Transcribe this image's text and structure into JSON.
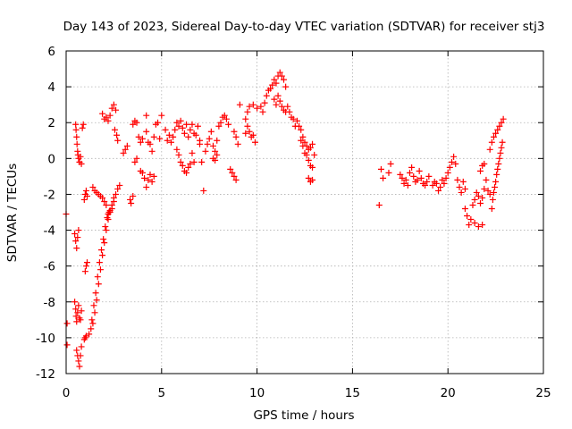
{
  "chart_data": {
    "type": "scatter",
    "title": "Day 143 of 2023, Sidereal Day-to-day VTEC variation (SDTVAR) for receiver stj3",
    "xlabel": "GPS time / hours",
    "ylabel": "SDTVAR / TECUs",
    "xlim": [
      0,
      25
    ],
    "ylim": [
      -12,
      6
    ],
    "xticks": [
      0,
      5,
      10,
      15,
      20,
      25
    ],
    "yticks": [
      -12,
      -10,
      -8,
      -6,
      -4,
      -2,
      0,
      2,
      4,
      6
    ],
    "grid": true,
    "marker": "+",
    "color": "#ff0000",
    "series": [
      {
        "name": "SDTVAR",
        "points": [
          [
            0.0,
            -3.1
          ],
          [
            0.05,
            -9.2
          ],
          [
            0.05,
            -10.4
          ],
          [
            0.5,
            1.9
          ],
          [
            0.52,
            1.6
          ],
          [
            0.55,
            1.2
          ],
          [
            0.57,
            0.8
          ],
          [
            0.6,
            0.4
          ],
          [
            0.62,
            0.2
          ],
          [
            0.65,
            0.0
          ],
          [
            0.7,
            -0.2
          ],
          [
            0.75,
            0.1
          ],
          [
            0.8,
            -0.3
          ],
          [
            0.85,
            1.7
          ],
          [
            0.9,
            1.9
          ],
          [
            0.45,
            -4.2
          ],
          [
            0.5,
            -4.6
          ],
          [
            0.55,
            -5.0
          ],
          [
            0.6,
            -4.4
          ],
          [
            0.65,
            -4.0
          ],
          [
            0.45,
            -8.0
          ],
          [
            0.5,
            -8.4
          ],
          [
            0.52,
            -8.8
          ],
          [
            0.55,
            -9.1
          ],
          [
            0.6,
            -8.6
          ],
          [
            0.65,
            -8.2
          ],
          [
            0.7,
            -8.9
          ],
          [
            0.75,
            -9.0
          ],
          [
            0.8,
            -8.5
          ],
          [
            0.55,
            -10.7
          ],
          [
            0.6,
            -11.0
          ],
          [
            0.65,
            -11.3
          ],
          [
            0.7,
            -11.6
          ],
          [
            0.75,
            -11.0
          ],
          [
            0.8,
            -10.5
          ],
          [
            0.95,
            -10.1
          ],
          [
            1.0,
            -10.0
          ],
          [
            1.05,
            -9.9
          ],
          [
            1.0,
            -6.3
          ],
          [
            1.05,
            -6.0
          ],
          [
            1.1,
            -5.8
          ],
          [
            0.95,
            -2.3
          ],
          [
            1.0,
            -2.0
          ],
          [
            1.05,
            -1.8
          ],
          [
            1.1,
            -2.1
          ],
          [
            1.2,
            -9.8
          ],
          [
            1.3,
            -9.5
          ],
          [
            1.4,
            -9.2
          ],
          [
            1.5,
            -8.6
          ],
          [
            1.6,
            -7.9
          ],
          [
            1.7,
            -7.0
          ],
          [
            1.8,
            -6.2
          ],
          [
            1.9,
            -5.4
          ],
          [
            2.0,
            -4.7
          ],
          [
            2.1,
            -4.0
          ],
          [
            2.2,
            -3.4
          ],
          [
            2.3,
            -2.9
          ],
          [
            2.4,
            -2.6
          ],
          [
            2.5,
            -2.2
          ],
          [
            1.35,
            -9.0
          ],
          [
            1.45,
            -8.2
          ],
          [
            1.55,
            -7.5
          ],
          [
            1.65,
            -6.6
          ],
          [
            1.75,
            -5.8
          ],
          [
            1.85,
            -5.1
          ],
          [
            1.95,
            -4.5
          ],
          [
            2.05,
            -3.8
          ],
          [
            2.15,
            -3.3
          ],
          [
            2.25,
            -3.0
          ],
          [
            2.2,
            -3.1
          ],
          [
            2.3,
            -3.0
          ],
          [
            2.4,
            -2.8
          ],
          [
            2.5,
            -2.4
          ],
          [
            2.6,
            -2.0
          ],
          [
            2.7,
            -1.7
          ],
          [
            2.8,
            -1.5
          ],
          [
            1.4,
            -1.6
          ],
          [
            1.5,
            -1.8
          ],
          [
            1.6,
            -1.9
          ],
          [
            1.7,
            -2.0
          ],
          [
            1.8,
            -2.1
          ],
          [
            1.9,
            -2.2
          ],
          [
            2.0,
            -2.4
          ],
          [
            2.1,
            -2.6
          ],
          [
            1.9,
            2.5
          ],
          [
            2.0,
            2.2
          ],
          [
            2.1,
            2.3
          ],
          [
            2.2,
            2.1
          ],
          [
            2.3,
            2.4
          ],
          [
            2.4,
            2.8
          ],
          [
            2.5,
            3.0
          ],
          [
            2.6,
            2.7
          ],
          [
            2.55,
            1.6
          ],
          [
            2.65,
            1.3
          ],
          [
            2.7,
            1.0
          ],
          [
            3.0,
            0.3
          ],
          [
            3.1,
            0.5
          ],
          [
            3.2,
            0.7
          ],
          [
            3.35,
            -2.3
          ],
          [
            3.4,
            -2.5
          ],
          [
            3.5,
            -2.1
          ],
          [
            3.5,
            1.9
          ],
          [
            3.6,
            2.1
          ],
          [
            3.7,
            2.0
          ],
          [
            3.8,
            1.2
          ],
          [
            3.9,
            0.9
          ],
          [
            4.0,
            1.1
          ],
          [
            4.2,
            2.4
          ],
          [
            3.6,
            -0.2
          ],
          [
            3.7,
            0.0
          ],
          [
            3.9,
            -0.7
          ],
          [
            4.0,
            -0.8
          ],
          [
            4.1,
            -1.1
          ],
          [
            4.2,
            -1.6
          ],
          [
            4.3,
            -1.2
          ],
          [
            4.4,
            -0.9
          ],
          [
            4.5,
            -1.3
          ],
          [
            4.6,
            -1.0
          ],
          [
            4.2,
            1.5
          ],
          [
            4.3,
            0.9
          ],
          [
            4.4,
            0.8
          ],
          [
            4.5,
            0.4
          ],
          [
            4.6,
            1.2
          ],
          [
            4.7,
            1.9
          ],
          [
            4.8,
            2.0
          ],
          [
            4.9,
            1.1
          ],
          [
            5.0,
            2.4
          ],
          [
            5.2,
            1.6
          ],
          [
            5.3,
            1.0
          ],
          [
            5.4,
            1.3
          ],
          [
            5.5,
            0.9
          ],
          [
            5.6,
            1.2
          ],
          [
            5.7,
            1.6
          ],
          [
            5.8,
            2.0
          ],
          [
            5.9,
            1.8
          ],
          [
            6.0,
            2.1
          ],
          [
            6.1,
            1.7
          ],
          [
            6.2,
            1.4
          ],
          [
            6.3,
            1.9
          ],
          [
            6.4,
            1.2
          ],
          [
            6.5,
            1.6
          ],
          [
            6.6,
            1.9
          ],
          [
            6.7,
            1.4
          ],
          [
            6.8,
            1.3
          ],
          [
            6.9,
            1.8
          ],
          [
            7.0,
            1.0
          ],
          [
            5.8,
            0.5
          ],
          [
            5.9,
            0.2
          ],
          [
            6.0,
            -0.2
          ],
          [
            6.1,
            -0.4
          ],
          [
            6.2,
            -0.7
          ],
          [
            6.3,
            -0.8
          ],
          [
            6.4,
            -0.5
          ],
          [
            6.5,
            -0.3
          ],
          [
            6.6,
            0.3
          ],
          [
            6.7,
            -0.2
          ],
          [
            7.0,
            0.8
          ],
          [
            7.1,
            -0.2
          ],
          [
            7.2,
            -1.8
          ],
          [
            7.3,
            0.4
          ],
          [
            7.4,
            0.8
          ],
          [
            7.5,
            1.1
          ],
          [
            7.6,
            1.5
          ],
          [
            7.7,
            0.7
          ],
          [
            7.8,
            0.4
          ],
          [
            7.9,
            1.0
          ],
          [
            8.0,
            1.8
          ],
          [
            8.1,
            2.0
          ],
          [
            8.2,
            2.3
          ],
          [
            8.3,
            2.4
          ],
          [
            8.4,
            2.2
          ],
          [
            8.5,
            1.9
          ],
          [
            7.7,
            0.0
          ],
          [
            7.8,
            -0.1
          ],
          [
            7.9,
            0.2
          ],
          [
            8.6,
            -0.6
          ],
          [
            8.7,
            -0.8
          ],
          [
            8.8,
            -1.0
          ],
          [
            8.9,
            -1.2
          ],
          [
            9.1,
            3.0
          ],
          [
            8.8,
            1.5
          ],
          [
            8.9,
            1.2
          ],
          [
            9.0,
            0.8
          ],
          [
            9.4,
            1.4
          ],
          [
            9.5,
            1.8
          ],
          [
            9.6,
            1.5
          ],
          [
            9.7,
            1.2
          ],
          [
            9.8,
            1.3
          ],
          [
            9.9,
            0.9
          ],
          [
            9.4,
            2.2
          ],
          [
            9.5,
            2.6
          ],
          [
            9.6,
            2.9
          ],
          [
            9.8,
            3.0
          ],
          [
            10.0,
            2.8
          ],
          [
            10.2,
            2.9
          ],
          [
            10.3,
            2.6
          ],
          [
            10.4,
            3.1
          ],
          [
            10.5,
            3.5
          ],
          [
            10.6,
            3.8
          ],
          [
            10.7,
            3.9
          ],
          [
            10.8,
            4.1
          ],
          [
            10.9,
            4.4
          ],
          [
            11.0,
            4.2
          ],
          [
            11.1,
            4.6
          ],
          [
            11.2,
            4.8
          ],
          [
            11.3,
            4.6
          ],
          [
            11.4,
            4.4
          ],
          [
            11.5,
            4.0
          ],
          [
            10.9,
            3.3
          ],
          [
            11.0,
            3.0
          ],
          [
            11.1,
            3.5
          ],
          [
            11.2,
            3.2
          ],
          [
            11.3,
            2.9
          ],
          [
            11.4,
            2.7
          ],
          [
            11.5,
            2.6
          ],
          [
            11.6,
            2.9
          ],
          [
            11.7,
            2.6
          ],
          [
            11.8,
            2.3
          ],
          [
            11.9,
            2.2
          ],
          [
            12.0,
            1.8
          ],
          [
            12.1,
            2.1
          ],
          [
            12.2,
            1.8
          ],
          [
            12.3,
            1.6
          ],
          [
            12.4,
            1.2
          ],
          [
            12.5,
            0.9
          ],
          [
            12.6,
            0.7
          ],
          [
            12.7,
            0.5
          ],
          [
            12.8,
            0.6
          ],
          [
            12.9,
            0.8
          ],
          [
            13.0,
            0.2
          ],
          [
            12.3,
            1.0
          ],
          [
            12.4,
            0.7
          ],
          [
            12.5,
            0.3
          ],
          [
            12.6,
            0.2
          ],
          [
            12.7,
            -0.1
          ],
          [
            12.8,
            -0.4
          ],
          [
            12.9,
            -0.5
          ],
          [
            12.7,
            -1.1
          ],
          [
            12.8,
            -1.3
          ],
          [
            12.9,
            -1.2
          ],
          [
            16.4,
            -2.6
          ],
          [
            16.5,
            -0.6
          ],
          [
            16.6,
            -1.1
          ],
          [
            16.9,
            -0.8
          ],
          [
            17.0,
            -0.3
          ],
          [
            17.5,
            -0.9
          ],
          [
            17.6,
            -1.1
          ],
          [
            17.7,
            -1.4
          ],
          [
            17.8,
            -1.2
          ],
          [
            17.9,
            -1.5
          ],
          [
            18.0,
            -0.8
          ],
          [
            18.1,
            -0.5
          ],
          [
            18.2,
            -1.0
          ],
          [
            18.3,
            -1.3
          ],
          [
            18.4,
            -1.2
          ],
          [
            18.5,
            -0.7
          ],
          [
            18.6,
            -1.1
          ],
          [
            18.7,
            -1.4
          ],
          [
            18.8,
            -1.5
          ],
          [
            18.9,
            -1.3
          ],
          [
            19.0,
            -1.0
          ],
          [
            19.2,
            -1.5
          ],
          [
            19.3,
            -1.3
          ],
          [
            19.4,
            -1.4
          ],
          [
            19.5,
            -1.8
          ],
          [
            19.6,
            -1.6
          ],
          [
            19.7,
            -1.2
          ],
          [
            19.8,
            -1.4
          ],
          [
            19.9,
            -1.1
          ],
          [
            20.0,
            -0.8
          ],
          [
            20.1,
            -0.5
          ],
          [
            20.2,
            -0.2
          ],
          [
            20.3,
            0.1
          ],
          [
            20.4,
            -0.3
          ],
          [
            20.5,
            -1.2
          ],
          [
            20.6,
            -1.6
          ],
          [
            20.7,
            -1.9
          ],
          [
            20.8,
            -1.3
          ],
          [
            20.9,
            -1.7
          ],
          [
            20.9,
            -2.8
          ],
          [
            21.0,
            -3.2
          ],
          [
            21.1,
            -3.7
          ],
          [
            21.2,
            -3.4
          ],
          [
            21.3,
            -2.6
          ],
          [
            21.4,
            -2.3
          ],
          [
            21.5,
            -1.9
          ],
          [
            21.6,
            -2.1
          ],
          [
            21.7,
            -2.5
          ],
          [
            21.8,
            -2.2
          ],
          [
            21.9,
            -1.7
          ],
          [
            21.4,
            -3.6
          ],
          [
            21.6,
            -3.8
          ],
          [
            21.8,
            -3.7
          ],
          [
            21.7,
            -0.7
          ],
          [
            21.8,
            -0.4
          ],
          [
            21.9,
            -0.3
          ],
          [
            22.0,
            -1.2
          ],
          [
            22.1,
            -1.8
          ],
          [
            22.2,
            -2.0
          ],
          [
            22.2,
            0.5
          ],
          [
            22.3,
            0.9
          ],
          [
            22.4,
            1.2
          ],
          [
            22.5,
            1.4
          ],
          [
            22.6,
            1.6
          ],
          [
            22.7,
            1.8
          ],
          [
            22.8,
            2.0
          ],
          [
            22.9,
            2.2
          ],
          [
            22.3,
            -2.8
          ],
          [
            22.35,
            -2.3
          ],
          [
            22.4,
            -1.9
          ],
          [
            22.45,
            -1.6
          ],
          [
            22.5,
            -1.3
          ],
          [
            22.55,
            -0.9
          ],
          [
            22.6,
            -0.6
          ],
          [
            22.65,
            -0.3
          ],
          [
            22.7,
            0.0
          ],
          [
            22.75,
            0.3
          ],
          [
            22.8,
            0.6
          ],
          [
            22.85,
            0.9
          ]
        ]
      }
    ]
  }
}
